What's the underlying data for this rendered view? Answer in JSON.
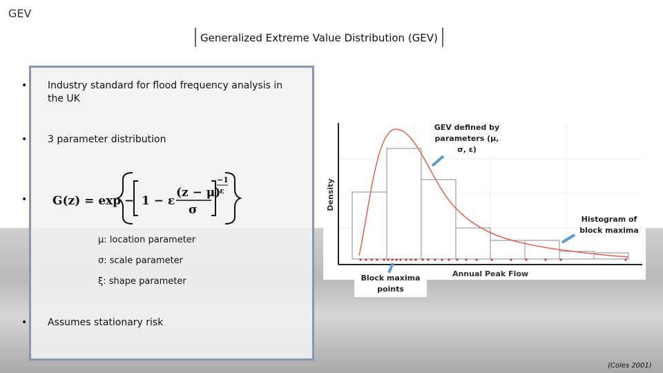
{
  "header": {
    "section": "GEV",
    "title": "Generalized Extreme Value Distribution (GEV)"
  },
  "bullets": [
    "Industry standard for flood frequency analysis in the UK",
    "3 parameter distribution",
    "Assumes stationary risk"
  ],
  "formula": {
    "lhs": "G(z) = exp",
    "minus": "−",
    "inner": "1 − ε",
    "numerator": "(z − μ)",
    "denominator": "σ",
    "exp_num": "−1",
    "exp_den": "ε"
  },
  "parameters": [
    "μ: location parameter",
    "σ: scale parameter",
    "ξ: shape parameter"
  ],
  "figure": {
    "y_label": "Density",
    "x_label": "Annual Peak Flow",
    "callouts": [
      "GEV defined by parameters (μ, σ, ε)",
      "Histogram of block maxima",
      "Block maxima points"
    ]
  },
  "citation": "(Coles 2001)"
}
